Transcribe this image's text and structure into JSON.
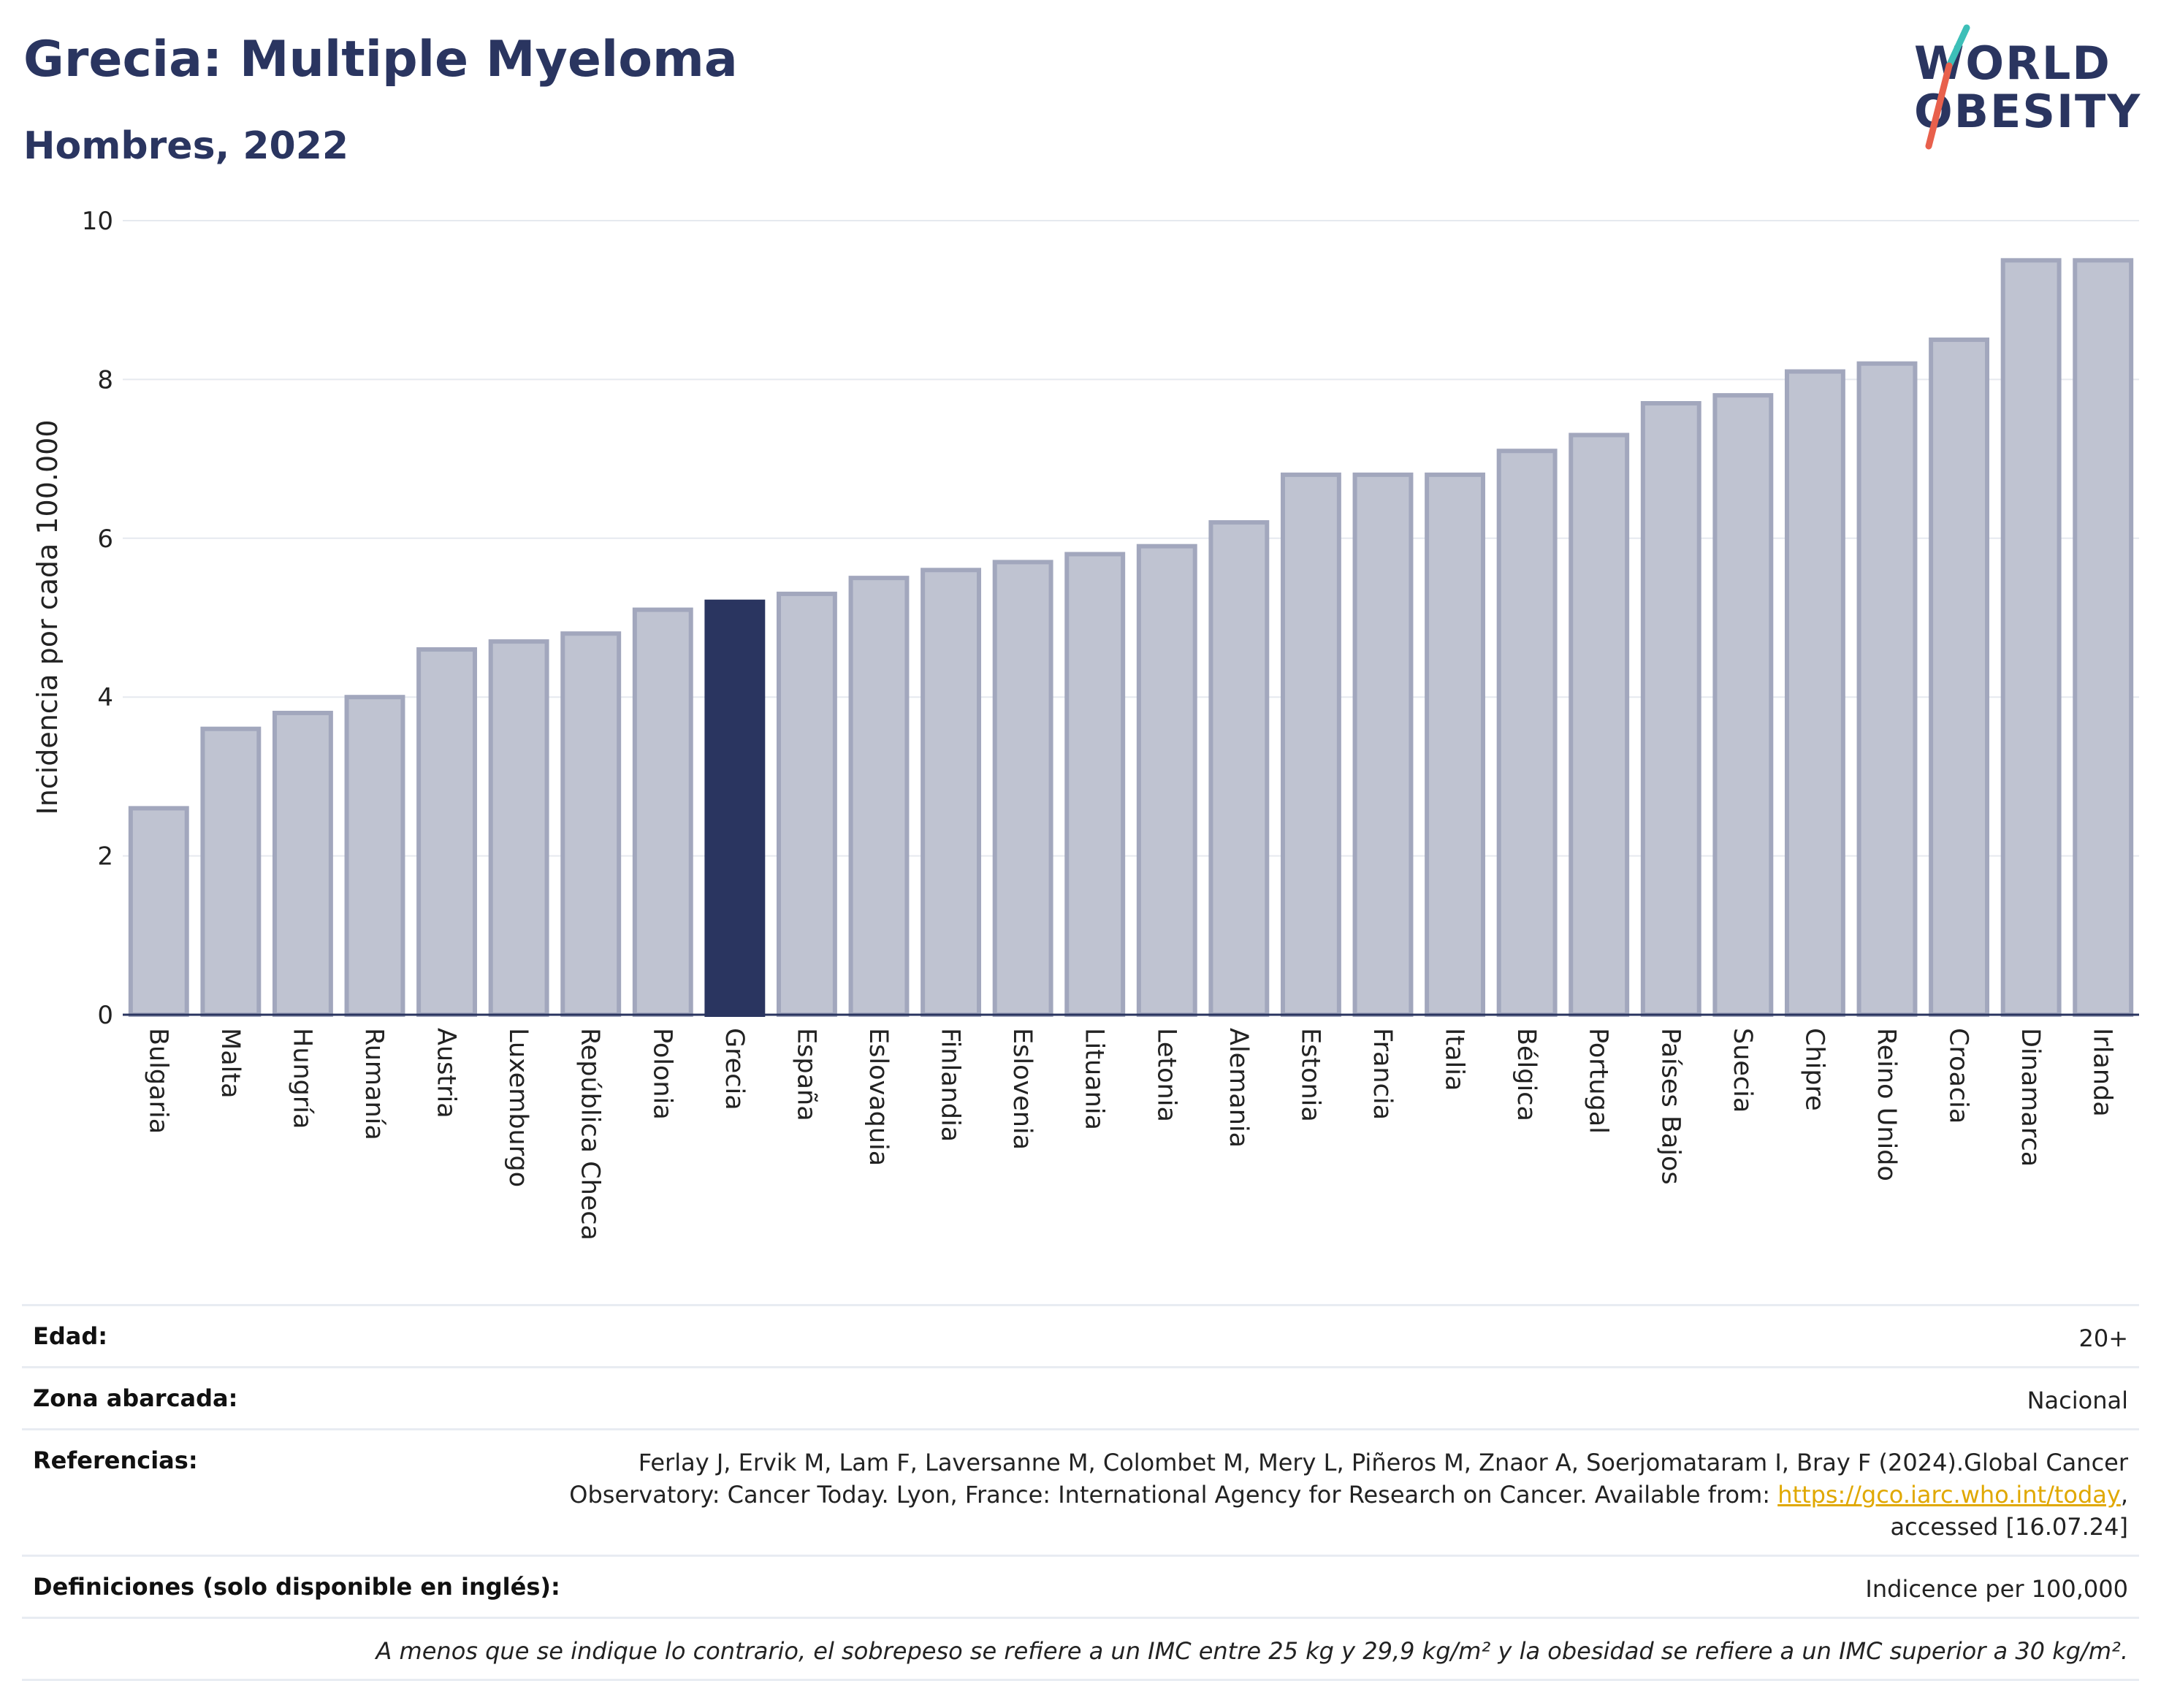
{
  "header": {
    "title": "Grecia: Multiple Myeloma",
    "subtitle": "Hombres, 2022",
    "logo_line1": "WORLD",
    "logo_line2": "OBESITY"
  },
  "colors": {
    "bar": "#bfc3d1",
    "bar_border": "#a2a7bd",
    "highlight": "#2a3560",
    "logo_slash_top": "#3dbfb8",
    "logo_slash_bottom": "#e8604c"
  },
  "chart_data": {
    "type": "bar",
    "ylabel": "Incidencia por cada 100.000",
    "ylim": [
      0,
      10
    ],
    "yticks": [
      0,
      2,
      4,
      6,
      8,
      10
    ],
    "grid": true,
    "highlight_category": "Grecia",
    "categories": [
      "Bulgaria",
      "Malta",
      "Hungría",
      "Rumanía",
      "Austria",
      "Luxemburgo",
      "República Checa",
      "Polonia",
      "Grecia",
      "España",
      "Eslovaquia",
      "Finlandia",
      "Eslovenia",
      "Lituania",
      "Letonia",
      "Alemania",
      "Estonia",
      "Francia",
      "Italia",
      "Bélgica",
      "Portugal",
      "Países Bajos",
      "Suecia",
      "Chipre",
      "Reino Unido",
      "Croacia",
      "Dinamarca",
      "Irlanda"
    ],
    "values": [
      2.6,
      3.6,
      3.8,
      4.0,
      4.6,
      4.7,
      4.8,
      5.1,
      5.2,
      5.3,
      5.5,
      5.6,
      5.7,
      5.8,
      5.9,
      6.2,
      6.8,
      6.8,
      6.8,
      7.1,
      7.3,
      7.7,
      7.8,
      8.1,
      8.2,
      8.5,
      9.5,
      9.5
    ]
  },
  "info": {
    "edad_label": "Edad:",
    "edad_value": "20+",
    "zona_label": "Zona abarcada:",
    "zona_value": "Nacional",
    "ref_label": "Referencias:",
    "ref_line1": "Ferlay J, Ervik M, Lam F, Laversanne M, Colombet M, Mery L, Piñeros M, Znaor A, Soerjomataram I, Bray F (2024).Global Cancer",
    "ref_line2_pre": "Observatory: Cancer Today. Lyon, France: International Agency for Research on Cancer. Available from: ",
    "ref_link": "https://gco.iarc.who.int/today",
    "ref_line2_post": ",",
    "ref_line3": "accessed [16.07.24]",
    "def_label": "Definiciones (solo disponible en inglés):",
    "def_value": "Indicence per 100,000",
    "note": "A menos que se indique lo contrario, el sobrepeso se refiere a un IMC entre 25 kg y 29,9 kg/m² y la obesidad se refiere a un IMC superior a 30 kg/m²."
  }
}
